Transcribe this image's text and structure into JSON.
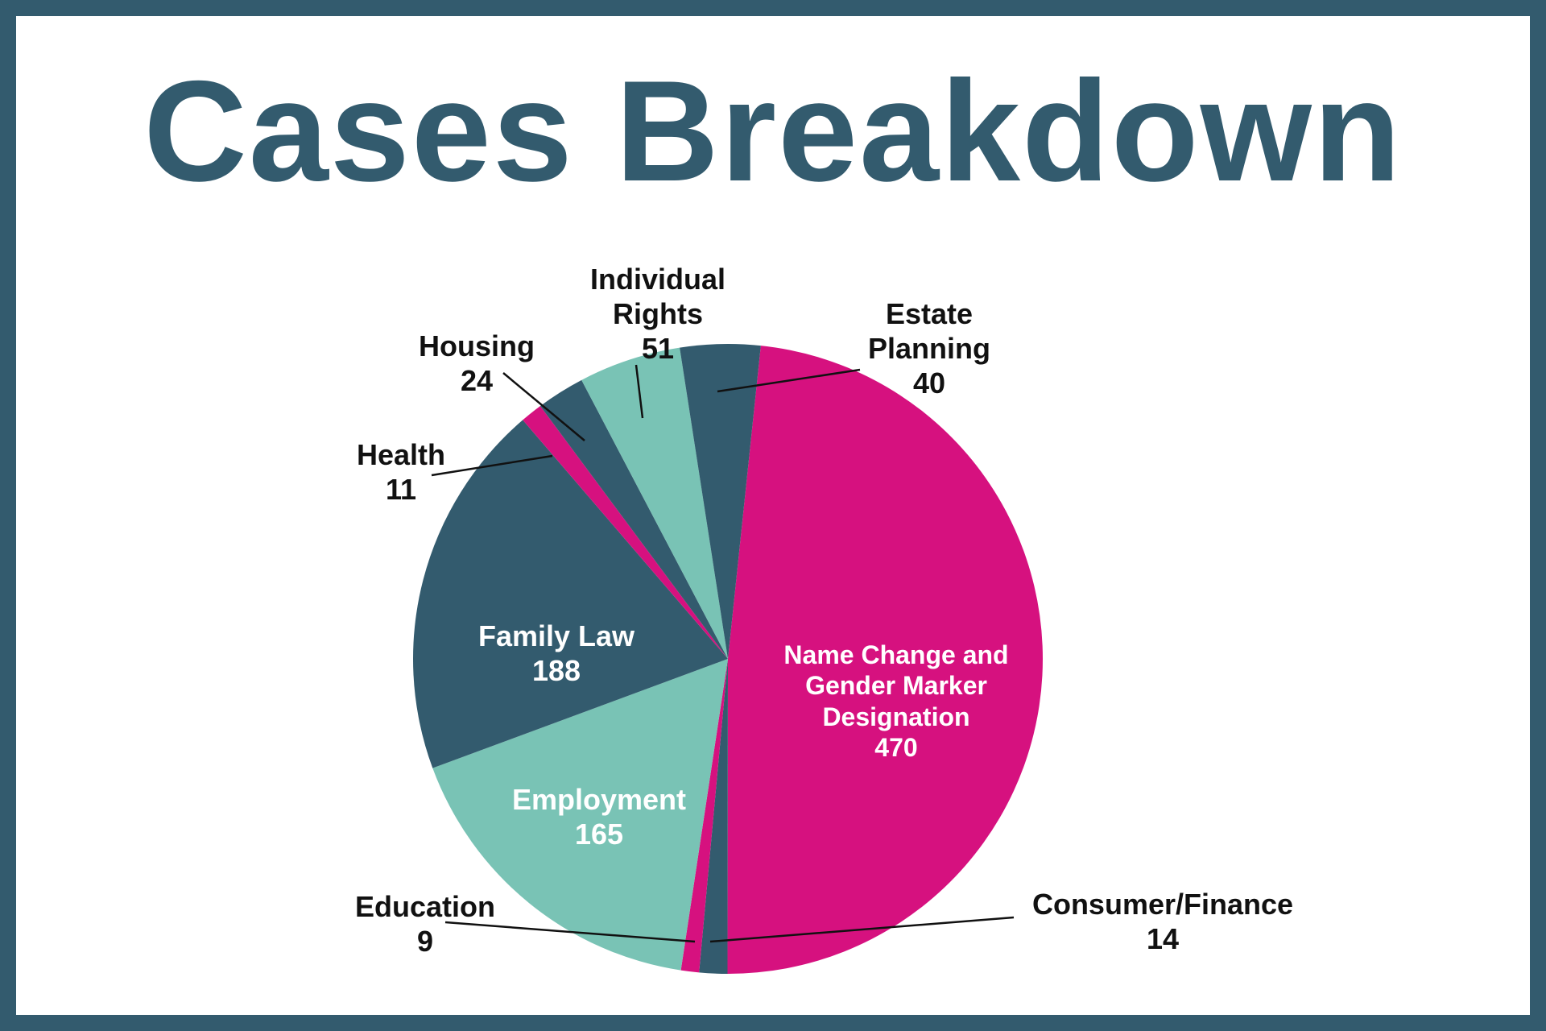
{
  "chart_data": {
    "type": "pie",
    "title": "Cases Breakdown",
    "categories": [
      "Name Change and Gender Marker Designation",
      "Consumer/Finance",
      "Education",
      "Employment",
      "Family Law",
      "Health",
      "Housing",
      "Individual Rights",
      "Estate Planning"
    ],
    "values": [
      470,
      14,
      9,
      165,
      188,
      11,
      24,
      51,
      40
    ],
    "colors": [
      "#d6117f",
      "#335b6e",
      "#d6117f",
      "#79c3b5",
      "#335b6e",
      "#d6117f",
      "#335b6e",
      "#79c3b5",
      "#335b6e"
    ]
  }
}
